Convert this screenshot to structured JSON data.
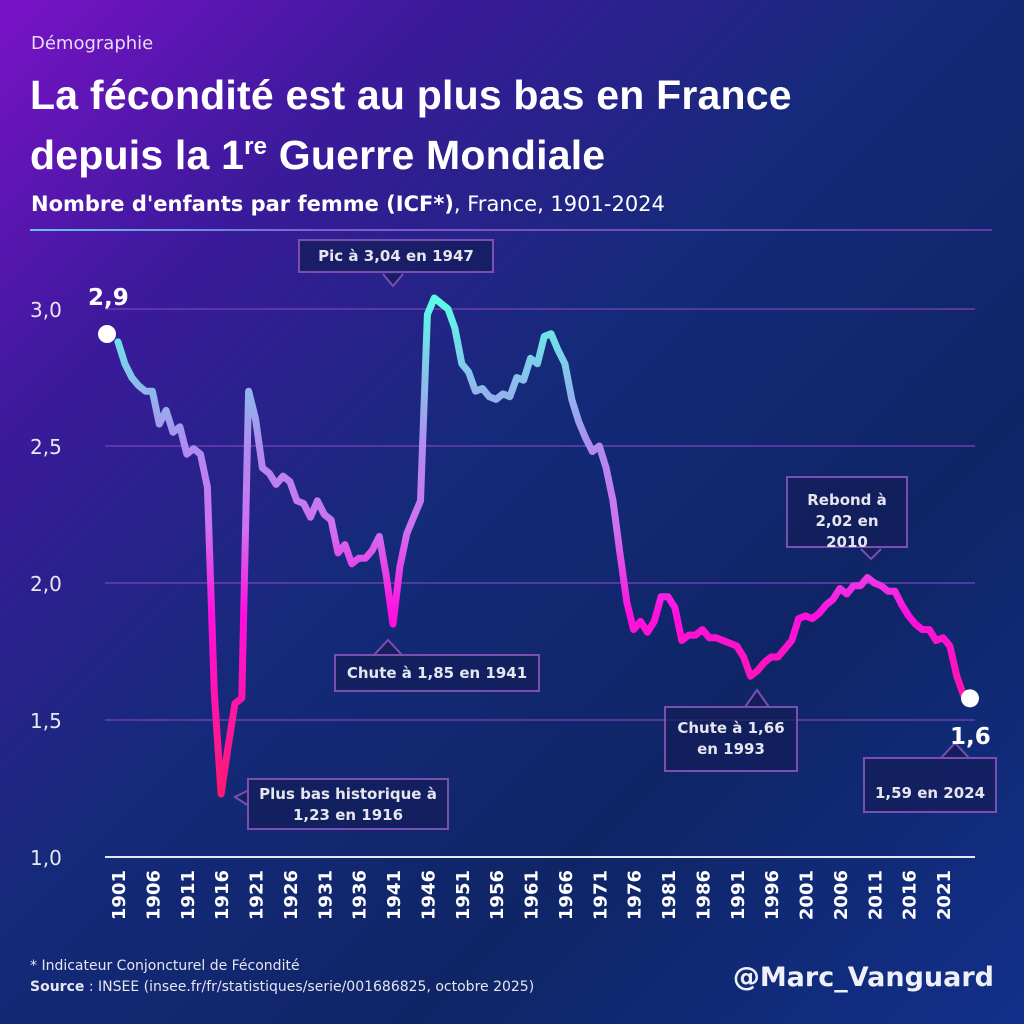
{
  "header": {
    "kicker": "Démographie",
    "title_line1": "La fécondité est au plus bas en France",
    "title_line2_pre": "depuis la 1",
    "title_line2_sup": "re",
    "title_line2_post": " Guerre Mondiale",
    "subtitle_bold": "Nombre d'enfants par femme (ICF*)",
    "subtitle_rest": ", France, 1901-2024"
  },
  "colors": {
    "high": "#5ff7e6",
    "mid": "#b08cf0",
    "low": "#ff10e0",
    "lowest": "#ff1a6e",
    "grid": "#6a3fb0"
  },
  "chart_data": {
    "type": "line",
    "title": "Nombre d'enfants par femme (ICF*), France, 1901-2024",
    "ylim": [
      1.0,
      3.0
    ],
    "y_ticks": [
      {
        "v": 1.0,
        "label": "1,0"
      },
      {
        "v": 1.5,
        "label": "1,5"
      },
      {
        "v": 2.0,
        "label": "2,0"
      },
      {
        "v": 2.5,
        "label": "2,5"
      },
      {
        "v": 3.0,
        "label": "3,0"
      }
    ],
    "x_tick_labels": [
      "1901",
      "1906",
      "1911",
      "1916",
      "1921",
      "1926",
      "1931",
      "1936",
      "1941",
      "1946",
      "1951",
      "1956",
      "1961",
      "1966",
      "1971",
      "1976",
      "1981",
      "1986",
      "1991",
      "1996",
      "2001",
      "2006",
      "2011",
      "2016",
      "2021"
    ],
    "grid": true,
    "x_start": 1901,
    "values": [
      2.88,
      2.8,
      2.75,
      2.72,
      2.7,
      2.7,
      2.58,
      2.63,
      2.55,
      2.57,
      2.47,
      2.49,
      2.47,
      2.35,
      1.6,
      1.23,
      1.4,
      1.56,
      1.58,
      2.7,
      2.6,
      2.42,
      2.4,
      2.36,
      2.39,
      2.37,
      2.3,
      2.29,
      2.24,
      2.3,
      2.25,
      2.23,
      2.11,
      2.14,
      2.07,
      2.09,
      2.09,
      2.12,
      2.17,
      2.03,
      1.85,
      2.06,
      2.18,
      2.24,
      2.3,
      2.98,
      3.04,
      3.02,
      3.0,
      2.93,
      2.8,
      2.77,
      2.7,
      2.71,
      2.68,
      2.67,
      2.69,
      2.68,
      2.75,
      2.74,
      2.82,
      2.8,
      2.9,
      2.91,
      2.85,
      2.8,
      2.67,
      2.59,
      2.53,
      2.48,
      2.5,
      2.42,
      2.3,
      2.11,
      1.93,
      1.83,
      1.86,
      1.82,
      1.86,
      1.95,
      1.95,
      1.91,
      1.79,
      1.81,
      1.81,
      1.83,
      1.8,
      1.8,
      1.79,
      1.78,
      1.77,
      1.73,
      1.66,
      1.68,
      1.71,
      1.73,
      1.73,
      1.76,
      1.79,
      1.87,
      1.88,
      1.87,
      1.89,
      1.92,
      1.94,
      1.98,
      1.96,
      1.99,
      1.99,
      2.02,
      2.0,
      1.99,
      1.97,
      1.97,
      1.92,
      1.88,
      1.85,
      1.83,
      1.83,
      1.79,
      1.8,
      1.77,
      1.66,
      1.59
    ],
    "start_label": "2,9",
    "end_label": "1,6",
    "annotations": [
      {
        "text": "Pic à 3,04 en 1947"
      },
      {
        "text": "Chute à 1,85 en 1941"
      },
      {
        "text_line1": "Plus bas historique à",
        "text_line2": "1,23 en 1916"
      },
      {
        "text_line1": "Rebond à",
        "text_line2": "2,02 en 2010"
      },
      {
        "text_line1": "Chute à 1,66",
        "text_line2": "en 1993"
      },
      {
        "text": "1,59 en 2024"
      }
    ]
  },
  "footer": {
    "note": "* Indicateur Conjoncturel de Fécondité",
    "source_label": "Source",
    "source_text": " : INSEE (insee.fr/fr/statistiques/serie/001686825, octobre 2025)",
    "handle": "@Marc_Vanguard"
  }
}
